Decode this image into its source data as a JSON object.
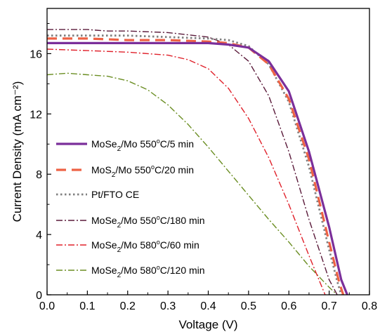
{
  "chart_data": {
    "type": "line",
    "title": "",
    "xlabel": "Voltage (V)",
    "ylabel": "Current Density (mA cm⁻²)",
    "xlim": [
      0.0,
      0.8
    ],
    "ylim": [
      0,
      19
    ],
    "grid": false,
    "legend_position": "left, lower-middle",
    "x_ticks": [
      "0.0",
      "0.1",
      "0.2",
      "0.3",
      "0.4",
      "0.5",
      "0.6",
      "0.7",
      "0.8"
    ],
    "y_ticks": [
      "0",
      "4",
      "8",
      "12",
      "16"
    ],
    "series": [
      {
        "name": "MoSe2/Mo 550°C/5 min",
        "legend": {
          "base": "MoSe",
          "sub": "2",
          "mid": "/Mo 550",
          "sup": "o",
          "rest": "C/5 min"
        },
        "color": "#7b2f9a",
        "dash": "",
        "width": 3.2,
        "x": [
          0.0,
          0.1,
          0.2,
          0.3,
          0.4,
          0.45,
          0.5,
          0.55,
          0.6,
          0.65,
          0.7,
          0.73,
          0.745
        ],
        "y": [
          16.7,
          16.7,
          16.7,
          16.7,
          16.7,
          16.6,
          16.4,
          15.5,
          13.5,
          9.5,
          4.5,
          1.0,
          0.0
        ]
      },
      {
        "name": "MoS2/Mo 550°C/20 min",
        "legend": {
          "base": "MoS",
          "sub": "2",
          "mid": "/Mo 550",
          "sup": "o",
          "rest": "C/20 min"
        },
        "color": "#ee6244",
        "dash": "14,8",
        "width": 3.2,
        "x": [
          0.0,
          0.1,
          0.2,
          0.3,
          0.4,
          0.45,
          0.5,
          0.55,
          0.6,
          0.65,
          0.7,
          0.725,
          0.735
        ],
        "y": [
          17.0,
          17.0,
          16.9,
          16.9,
          16.8,
          16.7,
          16.4,
          15.3,
          13.0,
          9.0,
          3.5,
          0.8,
          0.0
        ]
      },
      {
        "name": "Pt/FTO CE",
        "legend": {
          "base": "Pt/FTO CE",
          "sub": "",
          "mid": "",
          "sup": "",
          "rest": ""
        },
        "color": "#808080",
        "dash": "2.5,3.5",
        "width": 2.8,
        "x": [
          0.0,
          0.1,
          0.2,
          0.3,
          0.4,
          0.45,
          0.5,
          0.55,
          0.6,
          0.65,
          0.7,
          0.72,
          0.73
        ],
        "y": [
          17.2,
          17.2,
          17.2,
          17.1,
          17.0,
          16.9,
          16.5,
          15.3,
          12.8,
          8.5,
          3.0,
          0.9,
          0.0
        ]
      },
      {
        "name": "MoSe2/Mo 550°C/180 min",
        "legend": {
          "base": "MoSe",
          "sub": "2",
          "mid": "/Mo 550",
          "sup": "o",
          "rest": "C/180 min"
        },
        "color": "#5a1a3a",
        "dash": "9,3,2,3",
        "width": 1.4,
        "x": [
          0.0,
          0.05,
          0.1,
          0.15,
          0.2,
          0.3,
          0.4,
          0.45,
          0.5,
          0.55,
          0.6,
          0.65,
          0.7,
          0.72
        ],
        "y": [
          17.6,
          17.6,
          17.6,
          17.5,
          17.5,
          17.4,
          17.1,
          16.6,
          15.5,
          13.2,
          9.5,
          5.0,
          1.0,
          0.0
        ]
      },
      {
        "name": "MoSe2/Mo 580°C/60 min",
        "legend": {
          "base": "MoSe",
          "sub": "2",
          "mid": "/Mo 580",
          "sup": "o",
          "rest": "C/60 min"
        },
        "color": "#e0202a",
        "dash": "9,3,2,3",
        "width": 1.4,
        "x": [
          0.0,
          0.1,
          0.2,
          0.3,
          0.35,
          0.4,
          0.45,
          0.5,
          0.55,
          0.6,
          0.65,
          0.69
        ],
        "y": [
          16.3,
          16.2,
          16.1,
          15.9,
          15.6,
          15.0,
          13.7,
          11.7,
          9.1,
          6.0,
          2.6,
          0.0
        ]
      },
      {
        "name": "MoSe2/Mo 580°C/120 min",
        "legend": {
          "base": "MoSe",
          "sub": "2",
          "mid": "/Mo 580",
          "sup": "o",
          "rest": "C/120 min"
        },
        "color": "#6b8e23",
        "dash": "9,3,2,3",
        "width": 1.4,
        "x": [
          0.0,
          0.05,
          0.1,
          0.15,
          0.2,
          0.25,
          0.3,
          0.35,
          0.4,
          0.45,
          0.5,
          0.55,
          0.6,
          0.65,
          0.7,
          0.72
        ],
        "y": [
          14.6,
          14.7,
          14.6,
          14.5,
          14.2,
          13.6,
          12.6,
          11.3,
          9.8,
          8.2,
          6.6,
          5.0,
          3.5,
          1.9,
          0.5,
          0.0
        ]
      }
    ]
  }
}
